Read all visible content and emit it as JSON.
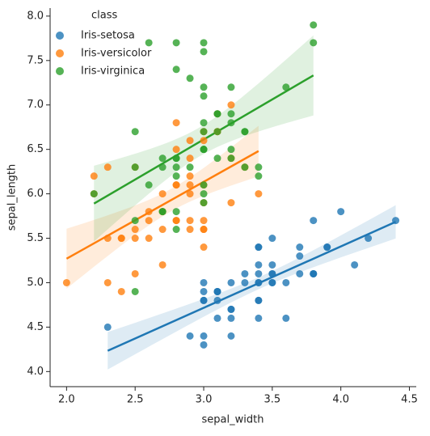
{
  "chart_data": {
    "type": "scatter",
    "x_label": "sepal_width",
    "y_label": "sepal_length",
    "legend_title": "class",
    "legend": "upper left",
    "regression": true,
    "xlim": [
      1.88,
      4.55
    ],
    "ylim": [
      3.83,
      8.09
    ],
    "xticks": [
      {
        "value": 2,
        "label": "2.0"
      },
      2.5,
      {
        "value": 3,
        "label": "3.0"
      },
      3.5,
      {
        "value": 4,
        "label": "4.0"
      },
      4.5
    ],
    "yticks": [
      {
        "value": 4,
        "label": "4.0"
      },
      4.5,
      {
        "value": 5,
        "label": "5.0"
      },
      5.5,
      {
        "value": 6,
        "label": "6.0"
      },
      6.5,
      {
        "value": 7,
        "label": "7.0"
      },
      7.5,
      {
        "value": 8,
        "label": "8.0"
      }
    ],
    "series": [
      {
        "name": "Iris-setosa",
        "color": "#1f77b4",
        "x": [
          3.5,
          3.0,
          3.2,
          3.1,
          3.6,
          3.9,
          3.4,
          3.4,
          2.9,
          3.1,
          3.7,
          3.4,
          3.0,
          3.0,
          4.0,
          4.4,
          3.9,
          3.5,
          3.8,
          3.8,
          3.4,
          3.7,
          3.6,
          3.3,
          3.4,
          3.0,
          3.4,
          3.5,
          3.4,
          3.2,
          3.1,
          3.4,
          4.1,
          4.2,
          3.1,
          3.2,
          3.5,
          3.1,
          3.0,
          3.4,
          3.5,
          2.3,
          3.2,
          3.5,
          3.8,
          3.0,
          3.8,
          3.2,
          3.7,
          3.3
        ],
        "values": [
          5.1,
          4.9,
          4.7,
          4.6,
          5.0,
          5.4,
          4.6,
          5.0,
          4.4,
          4.9,
          5.4,
          4.8,
          4.8,
          4.3,
          5.8,
          5.7,
          5.4,
          5.1,
          5.7,
          5.1,
          5.4,
          5.1,
          4.6,
          5.1,
          4.8,
          5.0,
          5.0,
          5.2,
          5.2,
          4.7,
          4.8,
          5.4,
          5.2,
          5.5,
          4.9,
          5.0,
          5.5,
          4.9,
          4.4,
          5.1,
          5.0,
          4.5,
          4.4,
          5.0,
          5.1,
          4.8,
          5.1,
          4.6,
          5.3,
          5.0
        ]
      },
      {
        "name": "Iris-versicolor",
        "color": "#ff7f0e",
        "x": [
          3.2,
          3.2,
          3.1,
          2.3,
          2.8,
          2.8,
          3.3,
          2.4,
          2.9,
          2.7,
          2.0,
          3.0,
          2.2,
          2.9,
          2.9,
          3.1,
          3.0,
          2.7,
          2.2,
          2.5,
          3.2,
          2.8,
          2.5,
          2.8,
          2.9,
          3.0,
          2.8,
          3.0,
          2.9,
          2.6,
          2.4,
          2.4,
          2.7,
          2.7,
          3.0,
          3.4,
          3.1,
          2.3,
          3.0,
          2.5,
          2.6,
          3.0,
          2.6,
          2.3,
          2.7,
          3.0,
          2.9,
          2.9,
          2.5,
          2.8
        ],
        "values": [
          7.0,
          6.4,
          6.9,
          5.5,
          6.5,
          5.7,
          6.3,
          4.9,
          6.6,
          5.2,
          5.0,
          5.9,
          6.0,
          6.1,
          5.6,
          6.7,
          5.6,
          5.8,
          6.2,
          5.6,
          5.9,
          6.1,
          6.3,
          6.1,
          6.4,
          6.6,
          6.8,
          6.7,
          6.0,
          5.7,
          5.5,
          5.5,
          5.8,
          6.0,
          5.4,
          6.0,
          6.7,
          6.3,
          5.6,
          5.5,
          5.5,
          6.1,
          5.8,
          5.0,
          5.6,
          5.7,
          5.7,
          6.2,
          5.1,
          5.7
        ]
      },
      {
        "name": "Iris-virginica",
        "color": "#2ca02c",
        "x": [
          3.3,
          2.7,
          3.0,
          2.9,
          3.0,
          3.0,
          2.5,
          2.9,
          2.5,
          3.6,
          3.2,
          2.7,
          3.0,
          2.5,
          2.8,
          3.2,
          3.0,
          3.8,
          2.6,
          2.2,
          3.2,
          2.8,
          2.8,
          2.7,
          3.3,
          3.2,
          2.8,
          3.0,
          2.8,
          3.0,
          2.8,
          3.8,
          2.8,
          2.8,
          2.6,
          3.0,
          3.4,
          3.1,
          3.0,
          3.1,
          3.1,
          3.1,
          2.7,
          3.2,
          3.3,
          3.0,
          2.5,
          3.0,
          3.4,
          3.0
        ],
        "values": [
          6.3,
          5.8,
          7.1,
          6.3,
          6.5,
          7.6,
          4.9,
          7.3,
          6.7,
          7.2,
          6.5,
          6.4,
          6.8,
          5.7,
          5.8,
          6.4,
          6.5,
          7.7,
          7.7,
          6.0,
          6.9,
          5.6,
          7.7,
          6.3,
          6.7,
          7.2,
          6.2,
          6.1,
          6.4,
          7.2,
          7.4,
          7.9,
          6.4,
          6.3,
          6.1,
          7.7,
          6.3,
          6.4,
          6.0,
          6.9,
          6.7,
          6.9,
          5.8,
          6.8,
          6.7,
          6.7,
          6.3,
          6.5,
          6.2,
          5.9
        ]
      }
    ]
  }
}
